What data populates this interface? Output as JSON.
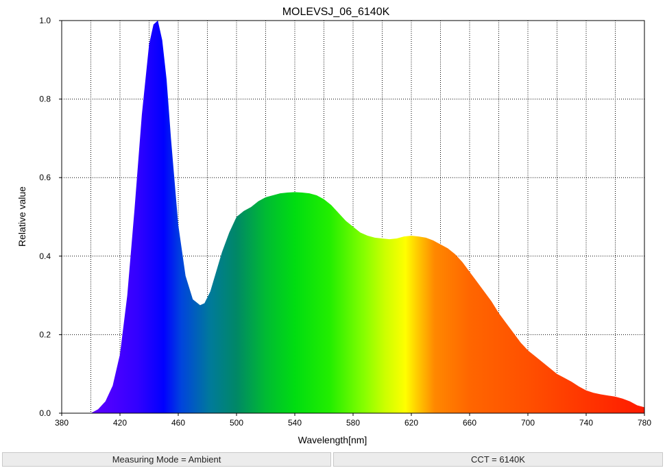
{
  "chart_data": {
    "type": "area",
    "title": "MOLEVSJ_06_6140K",
    "xlabel": "Wavelength[nm]",
    "ylabel": "Relative value",
    "xlim": [
      380,
      780
    ],
    "ylim": [
      0.0,
      1.0
    ],
    "xticks": [
      380,
      420,
      460,
      500,
      540,
      580,
      620,
      660,
      700,
      740,
      780
    ],
    "xtick_labels": [
      "380",
      "420",
      "460",
      "500",
      "540",
      "580",
      "620",
      "660",
      "700",
      "740",
      "780"
    ],
    "yticks": [
      0.0,
      0.2,
      0.4,
      0.6,
      0.8,
      1.0
    ],
    "ytick_labels": [
      "0.0",
      "0.2",
      "0.4",
      "0.6",
      "0.8",
      "1.0"
    ],
    "grid": true,
    "fill": "visible-spectrum gradient",
    "series": [
      {
        "x": [
          400,
          405,
          410,
          415,
          420,
          425,
          430,
          435,
          440,
          443,
          446,
          449,
          452,
          455,
          460,
          465,
          470,
          475,
          478,
          482,
          486,
          490,
          495,
          500,
          505,
          510,
          515,
          520,
          525,
          530,
          535,
          540,
          545,
          550,
          555,
          560,
          565,
          570,
          575,
          580,
          585,
          590,
          595,
          600,
          605,
          610,
          615,
          620,
          625,
          630,
          635,
          640,
          645,
          650,
          655,
          660,
          665,
          670,
          675,
          680,
          685,
          690,
          695,
          700,
          705,
          710,
          715,
          720,
          725,
          730,
          735,
          740,
          745,
          750,
          755,
          760,
          765,
          770,
          775,
          780
        ],
        "y": [
          0.0,
          0.01,
          0.03,
          0.07,
          0.15,
          0.3,
          0.52,
          0.76,
          0.94,
          0.99,
          1.0,
          0.95,
          0.85,
          0.7,
          0.48,
          0.35,
          0.29,
          0.275,
          0.28,
          0.31,
          0.36,
          0.41,
          0.46,
          0.5,
          0.515,
          0.525,
          0.54,
          0.55,
          0.555,
          0.56,
          0.562,
          0.563,
          0.562,
          0.56,
          0.555,
          0.545,
          0.53,
          0.51,
          0.49,
          0.475,
          0.46,
          0.452,
          0.447,
          0.445,
          0.443,
          0.445,
          0.45,
          0.452,
          0.45,
          0.447,
          0.44,
          0.43,
          0.42,
          0.405,
          0.385,
          0.36,
          0.335,
          0.31,
          0.285,
          0.255,
          0.23,
          0.205,
          0.18,
          0.16,
          0.145,
          0.13,
          0.115,
          0.1,
          0.09,
          0.08,
          0.068,
          0.058,
          0.052,
          0.048,
          0.045,
          0.042,
          0.037,
          0.03,
          0.02,
          0.015
        ]
      }
    ]
  },
  "status": {
    "left": "Measuring Mode = Ambient",
    "right": "CCT = 6140K"
  }
}
